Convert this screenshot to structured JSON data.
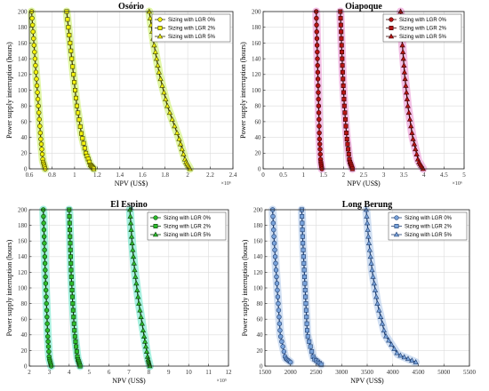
{
  "chart_data": [
    {
      "type": "scatter",
      "title": "Osório",
      "xlabel": "NPV (US$)",
      "ylabel": "Power supply interruption (hours)",
      "x_multiplier_label": "×10⁶",
      "xlim": [
        0.6,
        2.4
      ],
      "ylim": [
        0,
        200
      ],
      "xticks": [
        "0.6",
        "0.8",
        "1",
        "1.2",
        "1.4",
        "1.6",
        "1.8",
        "2",
        "2.2",
        "2.4"
      ],
      "xtick_values": [
        0.6,
        0.8,
        1.0,
        1.2,
        1.4,
        1.6,
        1.8,
        2.0,
        2.2,
        2.4
      ],
      "yticks": [
        "0",
        "20",
        "40",
        "60",
        "80",
        "100",
        "120",
        "140",
        "160",
        "180",
        "200"
      ],
      "ytick_values": [
        0,
        20,
        40,
        60,
        80,
        100,
        120,
        140,
        160,
        180,
        200
      ],
      "grid": true,
      "legend_position": "top-right",
      "colors": {
        "marker_fill": "#f2f20a",
        "marker_edge": "#3a3a00",
        "band": "#c8ef5a"
      },
      "series": [
        {
          "name": "Sizing with LGR 0%",
          "marker": "circle",
          "x": [
            0.62,
            0.64,
            0.66,
            0.68,
            0.7,
            0.72,
            0.74
          ],
          "y": [
            200,
            160,
            120,
            80,
            40,
            10,
            0
          ]
        },
        {
          "name": "Sizing with LGR 2%",
          "marker": "square",
          "x": [
            0.93,
            0.96,
            0.99,
            1.02,
            1.06,
            1.1,
            1.14,
            1.17
          ],
          "y": [
            200,
            160,
            120,
            80,
            45,
            20,
            5,
            0
          ]
        },
        {
          "name": "Sizing with LGR 5%",
          "marker": "triangle",
          "x": [
            1.66,
            1.7,
            1.75,
            1.82,
            1.92,
            1.98,
            2.02
          ],
          "y": [
            200,
            160,
            120,
            80,
            40,
            10,
            0
          ]
        }
      ]
    },
    {
      "type": "scatter",
      "title": "Oiapoque",
      "xlabel": "NPV (US$)",
      "ylabel": "Power supply interruption (hours)",
      "x_multiplier_label": "×10⁶",
      "xlim": [
        0,
        5
      ],
      "ylim": [
        0,
        200
      ],
      "xticks": [
        "0",
        "0.5",
        "1",
        "1.5",
        "2",
        "2.5",
        "3",
        "3.5",
        "4",
        "4.5",
        "5"
      ],
      "xtick_values": [
        0,
        0.5,
        1,
        1.5,
        2,
        2.5,
        3,
        3.5,
        4,
        4.5,
        5
      ],
      "yticks": [
        "0",
        "20",
        "40",
        "60",
        "80",
        "100",
        "120",
        "140",
        "160",
        "180",
        "200"
      ],
      "ytick_values": [
        0,
        20,
        40,
        60,
        80,
        100,
        120,
        140,
        160,
        180,
        200
      ],
      "grid": true,
      "legend_position": "top-right",
      "colors": {
        "marker_fill": "#b81414",
        "marker_edge": "#3a0000",
        "band": "#e98bd0"
      },
      "series": [
        {
          "name": "Sizing with LGR 0%",
          "marker": "circle",
          "x": [
            1.32,
            1.34,
            1.36,
            1.38,
            1.4,
            1.43,
            1.46
          ],
          "y": [
            200,
            160,
            120,
            80,
            40,
            10,
            0
          ]
        },
        {
          "name": "Sizing with LGR 2%",
          "marker": "square",
          "x": [
            1.92,
            1.95,
            1.98,
            2.02,
            2.08,
            2.15,
            2.22
          ],
          "y": [
            200,
            160,
            120,
            80,
            40,
            10,
            0
          ]
        },
        {
          "name": "Sizing with LGR 5%",
          "marker": "triangle",
          "x": [
            3.42,
            3.46,
            3.52,
            3.6,
            3.72,
            3.86,
            3.98
          ],
          "y": [
            200,
            160,
            120,
            80,
            40,
            10,
            0
          ]
        }
      ]
    },
    {
      "type": "scatter",
      "title": "El Espino",
      "xlabel": "NPV (US$)",
      "ylabel": "Power supply interruption (hours)",
      "x_multiplier_label": "×10⁵",
      "xlim": [
        2,
        12
      ],
      "ylim": [
        0,
        200
      ],
      "xticks": [
        "2",
        "3",
        "4",
        "5",
        "6",
        "7",
        "8",
        "9",
        "10",
        "11",
        "12"
      ],
      "xtick_values": [
        2,
        3,
        4,
        5,
        6,
        7,
        8,
        9,
        10,
        11,
        12
      ],
      "yticks": [
        "0",
        "20",
        "40",
        "60",
        "80",
        "100",
        "120",
        "140",
        "160",
        "180",
        "200"
      ],
      "ytick_values": [
        0,
        20,
        40,
        60,
        80,
        100,
        120,
        140,
        160,
        180,
        200
      ],
      "grid": true,
      "legend_position": "top-right",
      "colors": {
        "marker_fill": "#2bbd2b",
        "marker_edge": "#0c3a0c",
        "band": "#5fe6c4"
      },
      "series": [
        {
          "name": "Sizing with LGR 0%",
          "marker": "circle",
          "x": [
            2.7,
            2.75,
            2.8,
            2.86,
            2.92,
            3.0,
            3.1
          ],
          "y": [
            200,
            160,
            120,
            80,
            40,
            10,
            0
          ]
        },
        {
          "name": "Sizing with LGR 2%",
          "marker": "square",
          "x": [
            4.0,
            4.05,
            4.1,
            4.18,
            4.28,
            4.42,
            4.55
          ],
          "y": [
            200,
            160,
            120,
            80,
            40,
            10,
            0
          ]
        },
        {
          "name": "Sizing with LGR 5%",
          "marker": "triangle",
          "x": [
            7.05,
            7.15,
            7.3,
            7.5,
            7.75,
            7.95,
            8.05
          ],
          "y": [
            200,
            160,
            120,
            80,
            40,
            10,
            0
          ]
        }
      ]
    },
    {
      "type": "scatter",
      "title": "Long Berung",
      "xlabel": "NPV (US$)",
      "ylabel": "Power supply interruption (hours)",
      "x_multiplier_label": "",
      "xlim": [
        1500,
        5500
      ],
      "ylim": [
        0,
        200
      ],
      "xticks": [
        "1500",
        "2000",
        "2500",
        "3000",
        "3500",
        "4000",
        "4500",
        "5000",
        "5500"
      ],
      "xtick_values": [
        1500,
        2000,
        2500,
        3000,
        3500,
        4000,
        4500,
        5000,
        5500
      ],
      "yticks": [
        "0",
        "20",
        "40",
        "60",
        "80",
        "100",
        "120",
        "140",
        "160",
        "180",
        "200"
      ],
      "ytick_values": [
        0,
        20,
        40,
        60,
        80,
        100,
        120,
        140,
        160,
        180,
        200
      ],
      "grid": true,
      "legend_position": "top-right",
      "colors": {
        "marker_fill": "#7aa4dc",
        "marker_edge": "#1d3c6e",
        "band": "#a9c4ea"
      },
      "series": [
        {
          "name": "Sizing with LGR 0%",
          "marker": "circle",
          "x": [
            1650,
            1680,
            1720,
            1760,
            1800,
            1900,
            2000
          ],
          "y": [
            200,
            160,
            120,
            80,
            40,
            10,
            5
          ]
        },
        {
          "name": "Sizing with LGR 2%",
          "marker": "square",
          "x": [
            2220,
            2240,
            2270,
            2300,
            2330,
            2450,
            2600
          ],
          "y": [
            200,
            160,
            120,
            80,
            40,
            10,
            2
          ]
        },
        {
          "name": "Sizing with LGR 5%",
          "marker": "triangle",
          "x": [
            3480,
            3530,
            3600,
            3700,
            3850,
            4100,
            4450
          ],
          "y": [
            200,
            160,
            120,
            80,
            40,
            15,
            5
          ]
        }
      ]
    }
  ]
}
